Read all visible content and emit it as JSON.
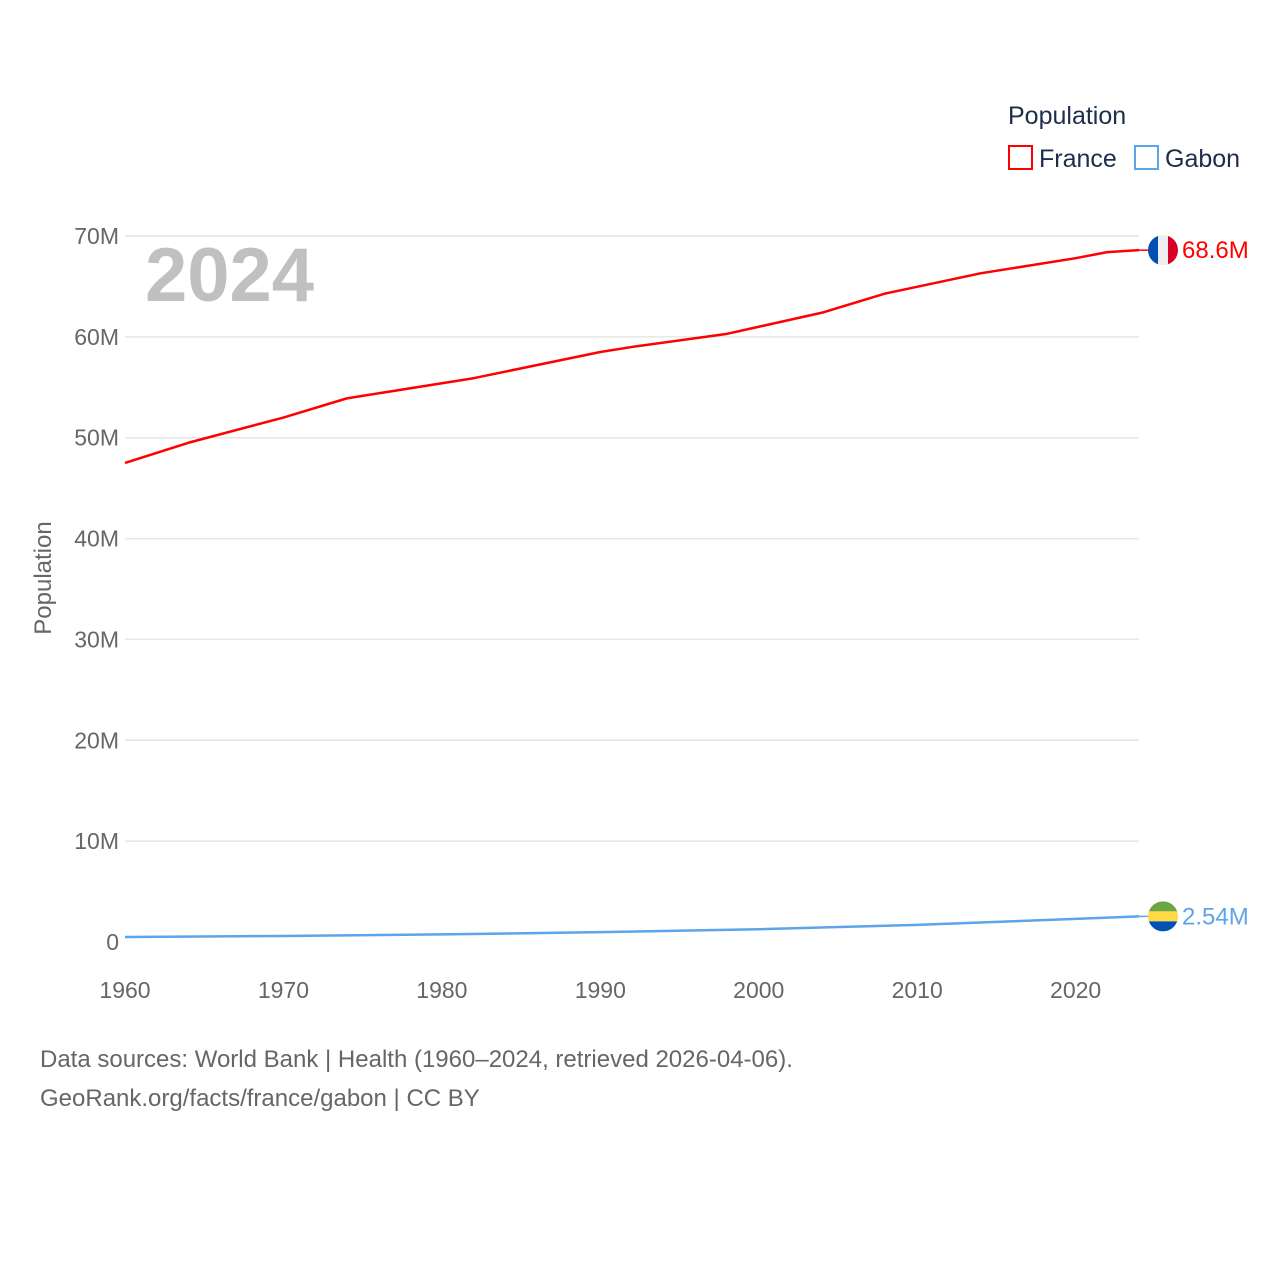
{
  "chart_data": {
    "type": "line",
    "title": "Population",
    "year_label": "2024",
    "ylabel": "Population",
    "xlabel": "",
    "xlim": [
      1960,
      2024
    ],
    "ylim": [
      0,
      70000000
    ],
    "x_ticks": [
      "1960",
      "1970",
      "1980",
      "1990",
      "2000",
      "2010",
      "2020"
    ],
    "y_ticks": [
      "0",
      "10M",
      "20M",
      "30M",
      "40M",
      "50M",
      "60M",
      "70M"
    ],
    "grid": true,
    "legend_position": "top-right",
    "legend_title": "Population",
    "series": [
      {
        "name": "France",
        "color": "#ff0000",
        "end_label": "68.6M",
        "flag": "france",
        "x": [
          1960,
          1964,
          1970,
          1974,
          1980,
          1982,
          1990,
          1992,
          1998,
          2000,
          2004,
          2008,
          2014,
          2020,
          2022,
          2024
        ],
        "values": [
          47.5,
          49.5,
          52.0,
          53.9,
          55.4,
          55.9,
          58.5,
          59.0,
          60.3,
          61.0,
          62.4,
          64.3,
          66.3,
          67.8,
          68.4,
          68.6
        ]
      },
      {
        "name": "Gabon",
        "color": "#5ea4ea",
        "end_label": "2.54M",
        "flag": "gabon",
        "x": [
          1960,
          1970,
          1980,
          1990,
          2000,
          2010,
          2020,
          2024
        ],
        "values": [
          0.5,
          0.6,
          0.75,
          0.98,
          1.27,
          1.7,
          2.29,
          2.54
        ]
      }
    ]
  },
  "footer": {
    "line1": "Data sources: World Bank | Health (1960–2024, retrieved 2026-04-06).",
    "line2": "GeoRank.org/facts/france/gabon | CC BY"
  }
}
